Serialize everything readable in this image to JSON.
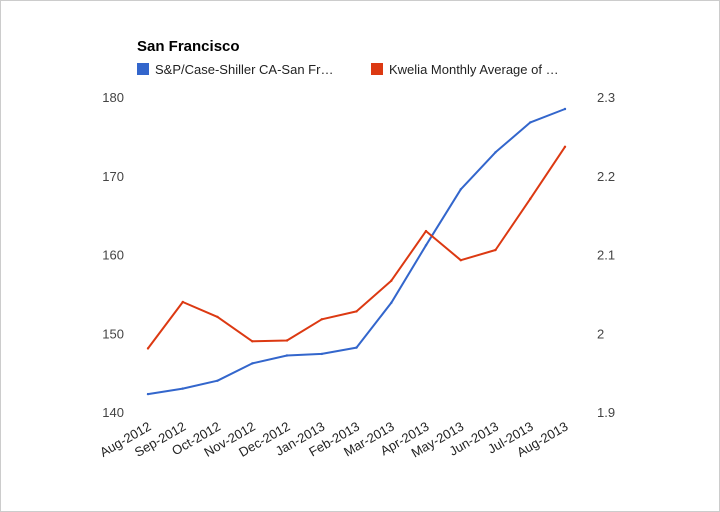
{
  "chart_data": {
    "type": "line",
    "title": "San Francisco",
    "categories": [
      "Aug-2012",
      "Sep-2012",
      "Oct-2012",
      "Nov-2012",
      "Dec-2012",
      "Jan-2013",
      "Feb-2013",
      "Mar-2013",
      "Apr-2013",
      "May-2013",
      "Jun-2013",
      "Jul-2013",
      "Aug-2013"
    ],
    "series": [
      {
        "name": "S&P/Case-Shiller CA-San Fr…",
        "axis": "left",
        "color": "#3366cc",
        "values": [
          142.4,
          143.1,
          144.1,
          146.3,
          147.3,
          147.5,
          148.3,
          154.0,
          161.3,
          168.4,
          173.1,
          176.9,
          178.6
        ]
      },
      {
        "name": "Kwelia Monthly Average of …",
        "axis": "right",
        "color": "#dc3912",
        "values": [
          1.982,
          2.041,
          2.022,
          1.991,
          1.992,
          2.019,
          2.029,
          2.068,
          2.131,
          2.094,
          2.107,
          2.172,
          2.238
        ]
      }
    ],
    "y_left": {
      "ticks": [
        "180",
        "170",
        "160",
        "150",
        "140"
      ],
      "ylim": [
        140,
        180
      ]
    },
    "y_right": {
      "ticks": [
        "2.3",
        "2.2",
        "2.1",
        "2",
        "1.9"
      ],
      "ylim": [
        1.9,
        2.3
      ]
    },
    "grid": false,
    "legend_position": "top"
  }
}
